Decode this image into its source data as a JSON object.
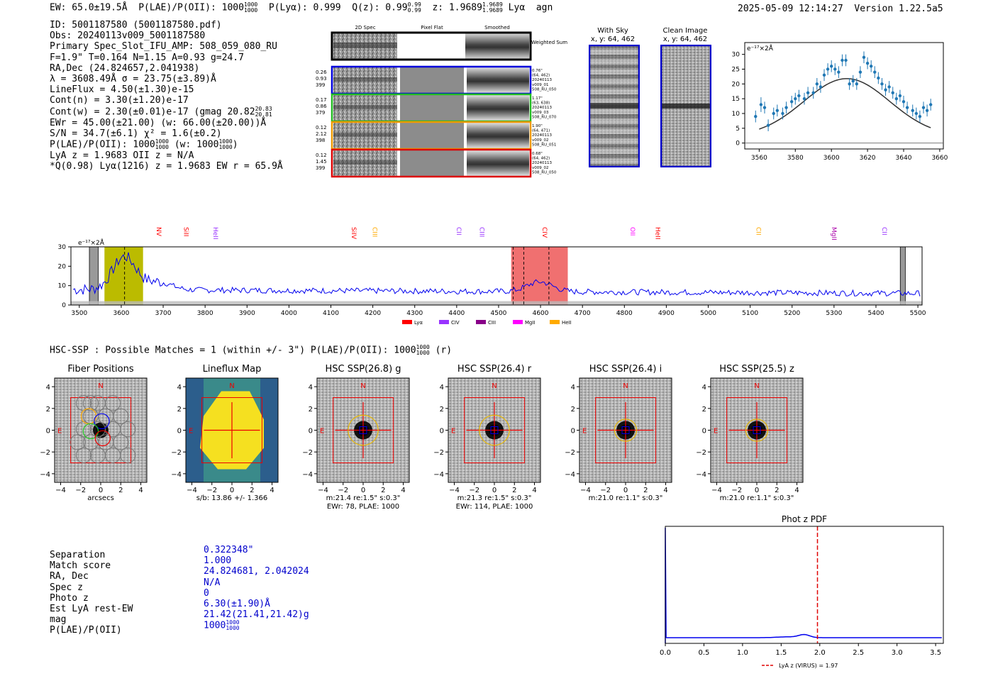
{
  "header": {
    "ew": "EW: 65.0±19.5Å",
    "plae_label": "P(LAE)/P(OII): 1000",
    "plae_hi": "1000",
    "plae_lo": "1000",
    "plya": "P(Lyα): 0.999",
    "qz_label": "Q(z): 0.99",
    "qz_hi": "0.99",
    "qz_lo": "0.99",
    "z_label": "z: 1.9689",
    "z_hi": "1.9689",
    "z_lo": "1.9689",
    "line": "Lyα",
    "cls": "agn",
    "timestamp": "2025-05-09 12:14:27",
    "version": "Version 1.22.5a5"
  },
  "info": {
    "lines": [
      "ID: 5001187580 (5001187580.pdf)",
      "Obs: 20240113v009_5001187580",
      "Primary Spec_Slot_IFU_AMP: 508_059_080_RU",
      "F=1.9\"  T=0.164  N=1.15  A=0.93  g=24.7",
      "RA,Dec (24.824657,2.041938)",
      "λ = 3608.49Å  σ = 23.75(±3.89)Å",
      "LineFlux = 4.50(±1.30)e-15",
      "Cont(n) = 3.30(±1.20)e-17"
    ],
    "contw": "Cont(w) = 2.30(±0.01)e-17 (gmag 20.82",
    "contw_hi": "20.83",
    "contw_lo": "20.81",
    "ewr": "EWr = 45.00(±21.00) (w: 66.00(±20.00))Å",
    "sn": "S/N = 34.7(±6.1)  χ² = 1.6(±0.2)",
    "plae": "P(LAE)/P(OII): 1000",
    "plae_w": "(w: 1000",
    "lya_line": "LyA z = 1.9683  OII z = N/A",
    "q_line": "*Q(0.98) Lyα(1216) z = 1.9683  EW r = 65.9Å"
  },
  "cutouts": {
    "col_titles": [
      "2D Spec",
      "Pixel Flat",
      "Smoothed"
    ],
    "weighted_sum": "Weighted Sum",
    "rows": [
      {
        "left": [
          "0.26",
          "0.93",
          "399"
        ],
        "right": [
          "0.76\"",
          "(64, 462)",
          "20240113",
          "v009_01",
          "508_RU_050"
        ],
        "color": "#0000dd"
      },
      {
        "left": [
          "0.17",
          "0.86",
          "379"
        ],
        "right": [
          "1.17\"",
          "(63, 638)",
          "20240113",
          "v009_03",
          "508_RU_070"
        ],
        "color": "#22bb22"
      },
      {
        "left": [
          "0.12",
          "2.12",
          "398"
        ],
        "right": [
          "1.90\"",
          "(64, 471)",
          "20240113",
          "v009_02",
          "508_RU_051"
        ],
        "color": "#ee9900"
      },
      {
        "left": [
          "0.12",
          "1.45",
          "399"
        ],
        "right": [
          "0.68\"",
          "(64, 462)",
          "20240113",
          "v009_02",
          "508_RU_050"
        ],
        "color": "#dd0000"
      }
    ],
    "with_sky_title": "With Sky",
    "with_sky_xy": "x, y: 64, 462",
    "clean_title": "Clean Image",
    "clean_xy": "x, y: 64, 462"
  },
  "hsc_line": "HSC-SSP : Possible Matches = 1 (within +/- 3\")  P(LAE)/P(OII): 1000",
  "hsc_line_suffix": "(r)",
  "panels": [
    {
      "title": "Fiber Positions",
      "label1": "arcsecs",
      "label2": ""
    },
    {
      "title": "Lineflux Map",
      "label1": "s/b: 13.86 +/- 1.366",
      "label2": ""
    },
    {
      "title": "HSC SSP(26.8) g",
      "label1": "m:21.4  re:1.5\"  s:0.3\"",
      "label2": "EWr: 78, PLAE: 1000"
    },
    {
      "title": "HSC SSP(26.4) r",
      "label1": "m:21.3  re:1.5\"  s:0.3\"",
      "label2": "EWr: 114, PLAE: 1000"
    },
    {
      "title": "HSC SSP(26.4) i",
      "label1": "m:21.0  re:1.1\"  s:0.3\"",
      "label2": ""
    },
    {
      "title": "HSC SSP(25.5) z",
      "label1": "m:21.0  re:1.1\"  s:0.3\"",
      "label2": ""
    }
  ],
  "compass": {
    "n": "N",
    "e": "E"
  },
  "match": {
    "labels": [
      "Separation",
      "Match score",
      "RA, Dec",
      "Spec z",
      "Photo z",
      "Est LyA rest-EW",
      "mag",
      "P(LAE)/P(OII)"
    ],
    "values": [
      "0.322348\"",
      "1.000",
      "24.824681, 2.042024",
      "N/A",
      "0",
      "6.30(±1.90)Å",
      "21.42(21.41,21.42)g",
      "1000"
    ]
  },
  "colors": {
    "accent_blue": "#0000cc",
    "line_blue": "#0000ee",
    "red": "#e00000",
    "yellow": "#bbbb00",
    "pink": "#f07070"
  },
  "chart_data": [
    {
      "type": "scatter",
      "title": "",
      "ylabel": "e⁻¹⁷×2Å",
      "xlim": [
        3552,
        3662
      ],
      "ylim": [
        -2,
        34
      ],
      "xticks": [
        3560,
        3580,
        3600,
        3620,
        3640,
        3660
      ],
      "yticks": [
        0,
        5,
        10,
        15,
        20,
        25,
        30
      ],
      "points": [
        {
          "x": 3558,
          "y": 9,
          "e": 2
        },
        {
          "x": 3561,
          "y": 13,
          "e": 2.5
        },
        {
          "x": 3563,
          "y": 12,
          "e": 2
        },
        {
          "x": 3565,
          "y": 6,
          "e": 2
        },
        {
          "x": 3568,
          "y": 10,
          "e": 2
        },
        {
          "x": 3570,
          "y": 11,
          "e": 2
        },
        {
          "x": 3573,
          "y": 10,
          "e": 2
        },
        {
          "x": 3575,
          "y": 12,
          "e": 2
        },
        {
          "x": 3578,
          "y": 14,
          "e": 2
        },
        {
          "x": 3580,
          "y": 15,
          "e": 2
        },
        {
          "x": 3582,
          "y": 16,
          "e": 2
        },
        {
          "x": 3585,
          "y": 15,
          "e": 2
        },
        {
          "x": 3587,
          "y": 17,
          "e": 2
        },
        {
          "x": 3590,
          "y": 17,
          "e": 2
        },
        {
          "x": 3592,
          "y": 20,
          "e": 2
        },
        {
          "x": 3594,
          "y": 19,
          "e": 2
        },
        {
          "x": 3596,
          "y": 23,
          "e": 2
        },
        {
          "x": 3598,
          "y": 25,
          "e": 2
        },
        {
          "x": 3600,
          "y": 26,
          "e": 2
        },
        {
          "x": 3602,
          "y": 25,
          "e": 2
        },
        {
          "x": 3604,
          "y": 24,
          "e": 2
        },
        {
          "x": 3606,
          "y": 28,
          "e": 2
        },
        {
          "x": 3608,
          "y": 28,
          "e": 2
        },
        {
          "x": 3610,
          "y": 20,
          "e": 2
        },
        {
          "x": 3612,
          "y": 21,
          "e": 2
        },
        {
          "x": 3614,
          "y": 20,
          "e": 2
        },
        {
          "x": 3616,
          "y": 24,
          "e": 2
        },
        {
          "x": 3618,
          "y": 29,
          "e": 2
        },
        {
          "x": 3620,
          "y": 27,
          "e": 2
        },
        {
          "x": 3622,
          "y": 26,
          "e": 2
        },
        {
          "x": 3624,
          "y": 24,
          "e": 2
        },
        {
          "x": 3626,
          "y": 22,
          "e": 2
        },
        {
          "x": 3628,
          "y": 20,
          "e": 2
        },
        {
          "x": 3630,
          "y": 18,
          "e": 2
        },
        {
          "x": 3632,
          "y": 19,
          "e": 2
        },
        {
          "x": 3634,
          "y": 17,
          "e": 2
        },
        {
          "x": 3636,
          "y": 15,
          "e": 2
        },
        {
          "x": 3638,
          "y": 16,
          "e": 2
        },
        {
          "x": 3640,
          "y": 14,
          "e": 2
        },
        {
          "x": 3642,
          "y": 12,
          "e": 2
        },
        {
          "x": 3645,
          "y": 11,
          "e": 2
        },
        {
          "x": 3647,
          "y": 10,
          "e": 2
        },
        {
          "x": 3649,
          "y": 9,
          "e": 2
        },
        {
          "x": 3651,
          "y": 12,
          "e": 2
        },
        {
          "x": 3653,
          "y": 11,
          "e": 2
        },
        {
          "x": 3655,
          "y": 13,
          "e": 2
        }
      ],
      "fit": {
        "amp": 19.5,
        "mu": 3608.5,
        "sigma": 23.75,
        "offset": 2.3
      }
    },
    {
      "type": "line",
      "ylabel": "e⁻¹⁷×2Å",
      "xlim": [
        3480,
        5510
      ],
      "ylim": [
        0,
        30
      ],
      "xticks": [
        3500,
        3600,
        3700,
        3800,
        3900,
        4000,
        4100,
        4200,
        4300,
        4400,
        4500,
        4600,
        4700,
        4800,
        4900,
        5000,
        5100,
        5200,
        5300,
        5400,
        5500
      ],
      "yticks": [
        0,
        10,
        20,
        30
      ],
      "line_markers": [
        {
          "name": "NV",
          "x": 3680,
          "color": "#ff0000"
        },
        {
          "name": "SiII",
          "x": 3745,
          "color": "#ff0000"
        },
        {
          "name": "HeII",
          "x": 3815,
          "color": "#9933ff"
        },
        {
          "name": "SiIV",
          "x": 4145,
          "color": "#ff0000"
        },
        {
          "name": "CIII",
          "x": 4195,
          "color": "#ffaa00"
        },
        {
          "name": "CII",
          "x": 4395,
          "color": "#9933ff"
        },
        {
          "name": "CIII",
          "x": 4450,
          "color": "#9933ff"
        },
        {
          "name": "CIV",
          "x": 4600,
          "color": "#ff0000"
        },
        {
          "name": "OII",
          "x": 4810,
          "color": "#ff00ff"
        },
        {
          "name": "HeII",
          "x": 4870,
          "color": "#ff0000"
        },
        {
          "name": "CII",
          "x": 5110,
          "color": "#ffaa00"
        },
        {
          "name": "MgII",
          "x": 5290,
          "color": "#aa00aa"
        },
        {
          "name": "CII",
          "x": 5410,
          "color": "#9933ff"
        }
      ],
      "legend": [
        {
          "name": "Lyα",
          "color": "#ff0000"
        },
        {
          "name": "CIV",
          "color": "#9933ff"
        },
        {
          "name": "CIII",
          "color": "#880088"
        },
        {
          "name": "MgII",
          "color": "#ff00ff"
        },
        {
          "name": "HeII",
          "color": "#ffaa00"
        }
      ],
      "highlight_yellow": [
        3560,
        3652
      ],
      "highlight_red": [
        4530,
        4665
      ],
      "hatch_bands": [
        [
          3524,
          3545
        ],
        [
          5458,
          5470
        ]
      ],
      "dashed_lines": [
        3608,
        4535,
        4560,
        4620
      ]
    },
    {
      "type": "line",
      "title": "Phot z PDF",
      "xlim": [
        0,
        3.6
      ],
      "ylim": [
        0,
        1
      ],
      "xticks": [
        0.0,
        0.5,
        1.0,
        1.5,
        2.0,
        2.5,
        3.0,
        3.5
      ],
      "marker_z": 1.97,
      "legend": "LyA z (VIRUS) = 1.97"
    }
  ]
}
